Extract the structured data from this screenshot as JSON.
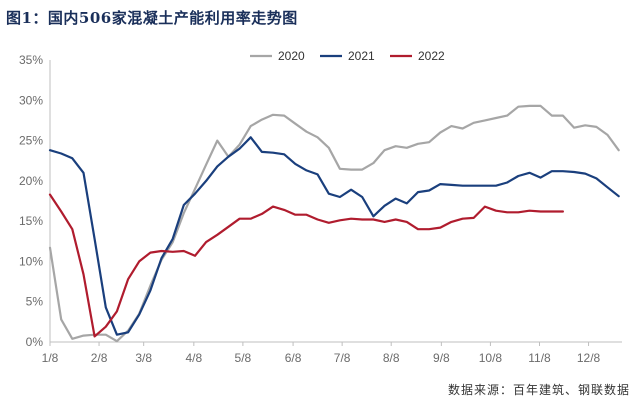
{
  "title": "图1：国内506家混凝土产能利用率走势图",
  "source": "数据来源：百年建筑、钢联数据",
  "chart_data": {
    "type": "line",
    "ylim": [
      0,
      35
    ],
    "yticks": [
      0,
      5,
      10,
      15,
      20,
      25,
      30,
      35
    ],
    "y_tick_labels": [
      "0%",
      "5%",
      "10%",
      "15%",
      "20%",
      "25%",
      "30%",
      "35%"
    ],
    "x_tick_labels": [
      "1/8",
      "2/8",
      "3/8",
      "4/8",
      "5/8",
      "6/8",
      "7/8",
      "8/8",
      "9/8",
      "10/8",
      "11/8",
      "12/8"
    ],
    "x_tick_week_index": [
      0,
      4.4,
      8.4,
      12.9,
      17.3,
      21.8,
      26.2,
      30.6,
      35.1,
      39.5,
      43.9,
      48.3
    ],
    "x_week_range": [
      0,
      51.3
    ],
    "grid": false,
    "legend_position": "top",
    "series": [
      {
        "name": "2020",
        "color": "#a6a6a6",
        "values": [
          11.7,
          2.8,
          0.4,
          0.8,
          0.9,
          0.9,
          0.1,
          1.4,
          3.5,
          7.0,
          10.2,
          12.4,
          16.0,
          19.0,
          22.0,
          25.0,
          23.0,
          24.5,
          26.8,
          27.6,
          28.2,
          28.1,
          27.1,
          26.1,
          25.4,
          24.1,
          21.5,
          21.4,
          21.4,
          22.2,
          23.8,
          24.3,
          24.1,
          24.6,
          24.8,
          26.0,
          26.8,
          26.5,
          27.2,
          27.5,
          27.8,
          28.1,
          29.2,
          29.3,
          29.3,
          28.1,
          28.1,
          26.6,
          26.9,
          26.7,
          25.7,
          23.8
        ]
      },
      {
        "name": "2021",
        "color": "#1a3f7d",
        "values": [
          23.8,
          23.4,
          22.8,
          21.0,
          12.8,
          4.3,
          0.9,
          1.2,
          3.4,
          6.4,
          10.4,
          12.8,
          17.0,
          18.4,
          20.0,
          21.8,
          23.0,
          24.0,
          25.4,
          23.6,
          23.5,
          23.3,
          22.1,
          21.3,
          20.8,
          18.4,
          18.0,
          18.9,
          18.0,
          15.6,
          16.9,
          17.8,
          17.2,
          18.6,
          18.8,
          19.6,
          19.5,
          19.4,
          19.4,
          19.4,
          19.4,
          19.8,
          20.6,
          21.0,
          20.4,
          21.2,
          21.2,
          21.1,
          20.9,
          20.3,
          19.2,
          18.1
        ]
      },
      {
        "name": "2022",
        "color": "#b01c2e",
        "values": [
          18.3,
          16.2,
          14.0,
          8.4,
          0.7,
          1.9,
          3.8,
          7.8,
          10.0,
          11.1,
          11.3,
          11.2,
          11.3,
          10.7,
          12.4,
          13.3,
          14.3,
          15.3,
          15.3,
          15.9,
          16.8,
          16.4,
          15.8,
          15.8,
          15.2,
          14.8,
          15.1,
          15.3,
          15.2,
          15.2,
          14.9,
          15.2,
          14.9,
          14.0,
          14.0,
          14.2,
          14.9,
          15.3,
          15.4,
          16.8,
          16.3,
          16.1,
          16.1,
          16.3,
          16.2,
          16.2,
          16.2
        ]
      }
    ]
  }
}
